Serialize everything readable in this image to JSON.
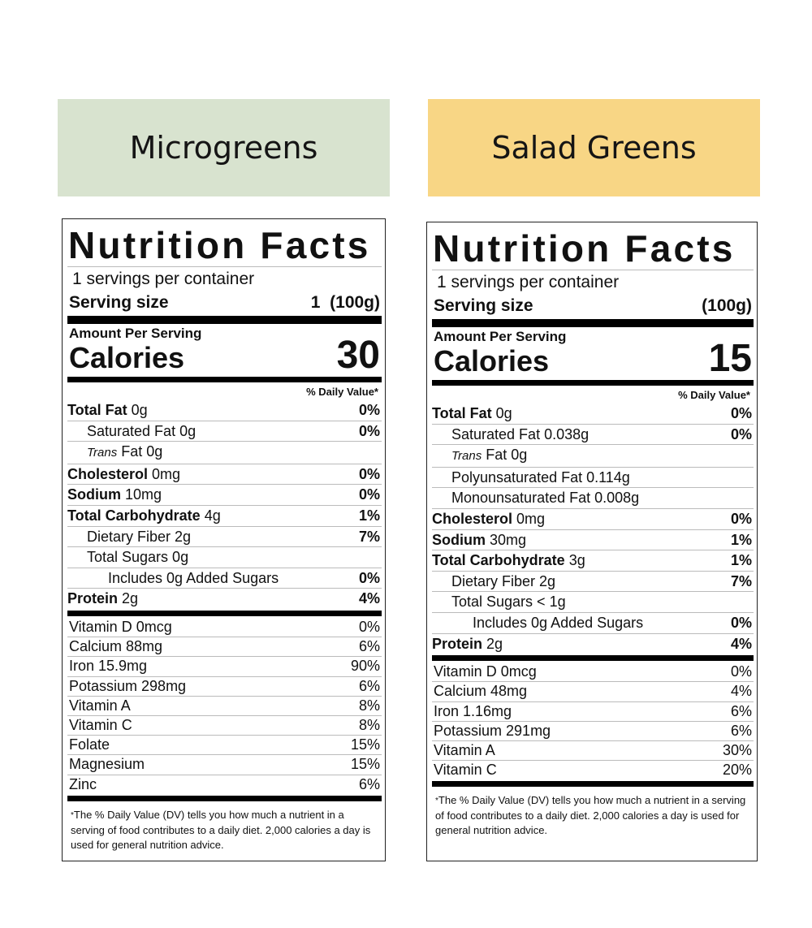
{
  "left": {
    "banner": "Microgreens",
    "title": "Nutrition Facts",
    "servings": "1 servings per container",
    "serving_size_label": "Serving size",
    "serving_size_value": "1  (100g)",
    "amount_per_serving": "Amount Per Serving",
    "calories_label": "Calories",
    "calories_value": "30",
    "dv_header": "% Daily Value*",
    "nutrients": [
      {
        "bold": "Total Fat",
        "rest": " 0g",
        "pct": "0%"
      },
      {
        "bold": "",
        "rest": "Saturated Fat 0g",
        "pct": "0%"
      },
      {
        "italic": "Trans",
        "rest": " Fat 0g",
        "pct": ""
      },
      {
        "bold": "Cholesterol",
        "rest": " 0mg",
        "pct": "0%"
      },
      {
        "bold": "Sodium",
        "rest": " 10mg",
        "pct": "0%"
      },
      {
        "bold": "Total Carbohydrate",
        "rest": " 4g",
        "pct": "1%"
      },
      {
        "bold": "",
        "rest": "Dietary Fiber 2g",
        "pct": "7%"
      },
      {
        "bold": "",
        "rest": "Total Sugars 0g",
        "pct": ""
      },
      {
        "bold": "",
        "rest": "Includes 0g Added Sugars",
        "pct": "0%"
      },
      {
        "bold": "Protein",
        "rest": " 2g",
        "pct": "4%"
      }
    ],
    "vitamins": [
      {
        "name": "Vitamin D 0mcg",
        "pct": "0%"
      },
      {
        "name": "Calcium 88mg",
        "pct": "6%"
      },
      {
        "name": "Iron 15.9mg",
        "pct": "90%"
      },
      {
        "name": "Potassium 298mg",
        "pct": "6%"
      },
      {
        "name": "Vitamin A",
        "pct": "8%"
      },
      {
        "name": "Vitamin C",
        "pct": "8%"
      },
      {
        "name": "Folate",
        "pct": "15%"
      },
      {
        "name": "Magnesium",
        "pct": "15%"
      },
      {
        "name": "Zinc",
        "pct": "6%"
      }
    ],
    "footnote_star": "*",
    "footnote": "The % Daily Value (DV) tells you how much a nutrient in a serving of food contributes to a daily diet. 2,000 calories a day is used for general nutrition advice."
  },
  "right": {
    "banner": "Salad Greens",
    "title": "Nutrition Facts",
    "servings": "1 servings per container",
    "serving_size_label": "Serving size",
    "serving_size_value": "(100g)",
    "amount_per_serving": "Amount Per Serving",
    "calories_label": "Calories",
    "calories_value": "15",
    "dv_header": "% Daily Value*",
    "nutrients": [
      {
        "bold": "Total Fat",
        "rest": " 0g",
        "pct": "0%"
      },
      {
        "bold": "",
        "rest": "Saturated Fat 0.038g",
        "pct": "0%"
      },
      {
        "italic": "Trans",
        "rest": " Fat 0g",
        "pct": ""
      },
      {
        "bold": "",
        "rest": "Polyunsaturated Fat 0.114g",
        "pct": ""
      },
      {
        "bold": "",
        "rest": "Monounsaturated Fat 0.008g",
        "pct": ""
      },
      {
        "bold": "Cholesterol",
        "rest": " 0mg",
        "pct": "0%"
      },
      {
        "bold": "Sodium",
        "rest": " 30mg",
        "pct": "1%"
      },
      {
        "bold": "Total Carbohydrate",
        "rest": " 3g",
        "pct": "1%"
      },
      {
        "bold": "",
        "rest": "Dietary Fiber 2g",
        "pct": "7%"
      },
      {
        "bold": "",
        "rest": "Total Sugars < 1g",
        "pct": ""
      },
      {
        "bold": "",
        "rest": "Includes 0g Added Sugars",
        "pct": "0%"
      },
      {
        "bold": "Protein",
        "rest": " 2g",
        "pct": "4%"
      }
    ],
    "vitamins": [
      {
        "name": "Vitamin D 0mcg",
        "pct": "0%"
      },
      {
        "name": "Calcium 48mg",
        "pct": "4%"
      },
      {
        "name": "Iron 1.16mg",
        "pct": "6%"
      },
      {
        "name": "Potassium 291mg",
        "pct": "6%"
      },
      {
        "name": "Vitamin A",
        "pct": "30%"
      },
      {
        "name": "Vitamin C",
        "pct": "20%"
      }
    ],
    "footnote_star": "*",
    "footnote": "The % Daily Value (DV) tells you how much a nutrient in a serving of food contributes to a daily diet. 2,000 calories a day is used for general nutrition advice."
  },
  "colors": {
    "microgreens_banner": "#d8e3cf",
    "salad_greens_banner": "#f8d685"
  }
}
